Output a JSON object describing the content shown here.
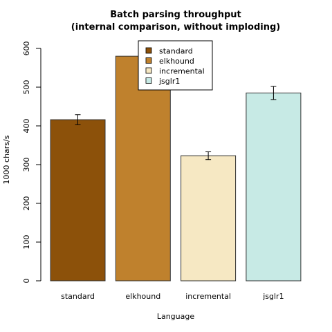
{
  "chart_data": {
    "type": "bar",
    "title": "Batch parsing throughput",
    "subtitle": "(internal comparison, without imploding)",
    "xlabel": "Language",
    "ylabel": "1000 chars/s",
    "ylim": [
      0,
      600
    ],
    "yticks": [
      0,
      100,
      200,
      300,
      400,
      500,
      600
    ],
    "categories": [
      "standard",
      "elkhound",
      "incremental",
      "jsglr1"
    ],
    "values": [
      416,
      580,
      323,
      485
    ],
    "errors": [
      13,
      32,
      10,
      17
    ],
    "colors": [
      "#8c510a",
      "#bf812d",
      "#f6e8c3",
      "#c7eae5"
    ],
    "legend": {
      "placement": "top-center",
      "entries": [
        "standard",
        "elkhound",
        "incremental",
        "jsglr1"
      ]
    },
    "grid": false
  }
}
